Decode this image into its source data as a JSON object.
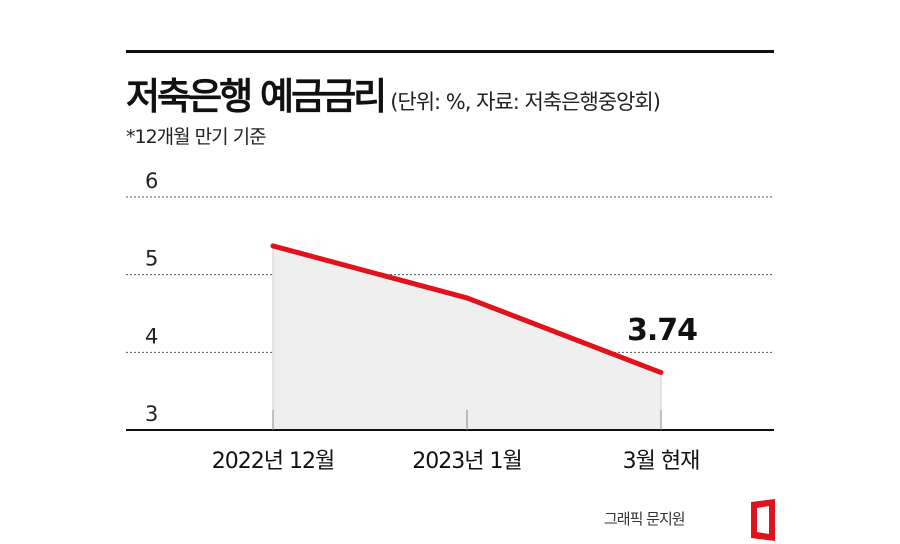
{
  "header": {
    "title": "저축은행 예금금리",
    "subtitle": "(단위: %, 자료: 저축은행중앙회)",
    "note": "*12개월 만기 기준"
  },
  "chart_data": {
    "type": "area",
    "categories": [
      "2022년 12월",
      "2023년 1월",
      "3월 현재"
    ],
    "values": [
      5.37,
      4.7,
      3.74
    ],
    "ylim": [
      3,
      6
    ],
    "yticks": [
      "3",
      "4",
      "5",
      "6"
    ],
    "grid": true,
    "last_value_label": "3.74",
    "line_color": "#e0121b",
    "fill_color": "#efefef"
  },
  "footer": {
    "credit": "그래픽 문지원",
    "logo_color": "#e0121b"
  }
}
